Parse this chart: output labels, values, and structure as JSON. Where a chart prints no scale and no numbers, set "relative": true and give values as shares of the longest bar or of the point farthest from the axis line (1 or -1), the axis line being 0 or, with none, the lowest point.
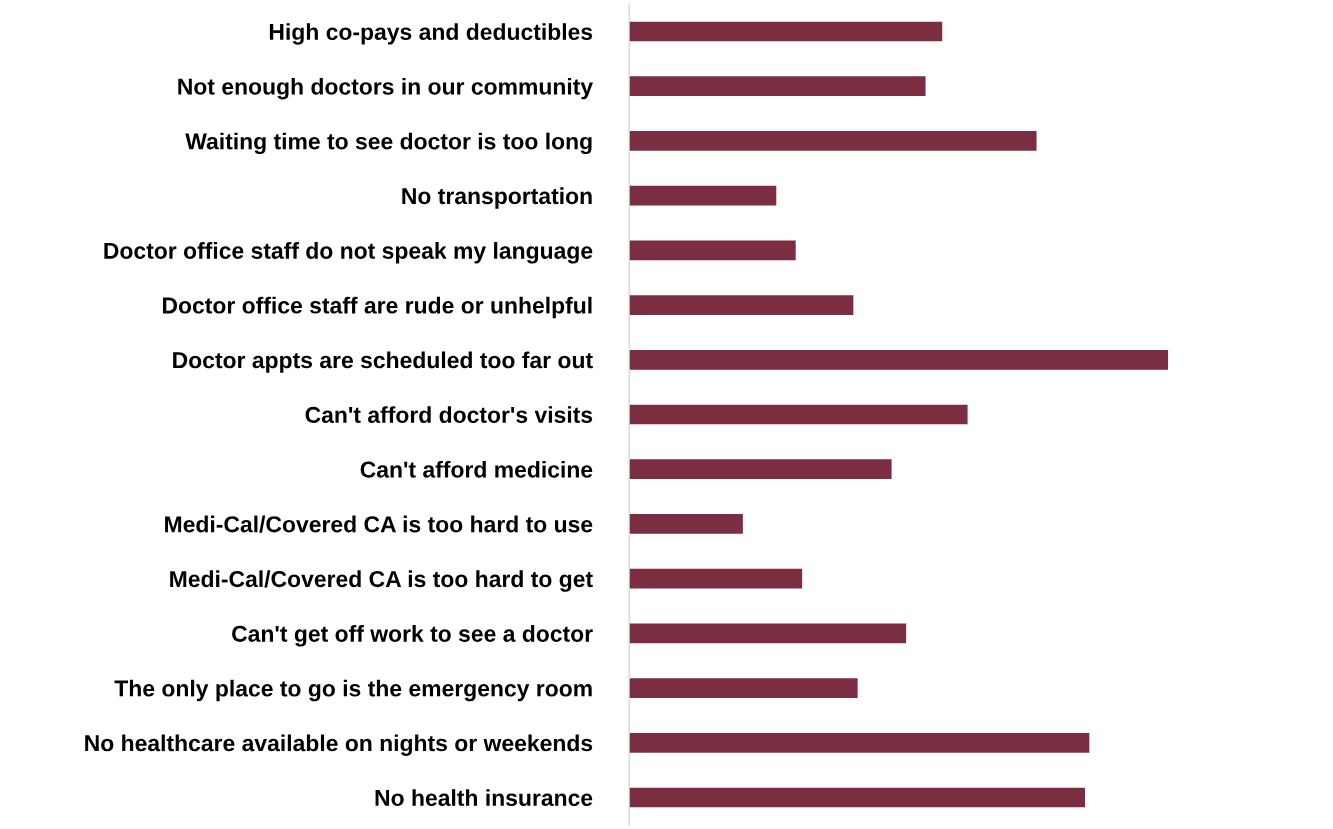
{
  "chart_data": {
    "type": "bar",
    "orientation": "horizontal",
    "relative": true,
    "color": "#7b2d42",
    "categories": [
      "High co-pays and deductibles",
      "Not enough doctors in our community",
      "Waiting time to see doctor is too long",
      "No transportation",
      "Doctor office staff do not speak my language",
      "Doctor office staff are rude or unhelpful",
      "Doctor appts are scheduled too far out",
      "Can't afford doctor's visits",
      "Can't afford medicine",
      "Medi-Cal/Covered CA is too hard to use",
      "Medi-Cal/Covered CA is too hard to get",
      "Can't get off work to see a doctor",
      "The only place to go is the emergency room",
      "No healthcare available on nights or weekends",
      "No health insurance"
    ],
    "values": [
      0.581,
      0.55,
      0.756,
      0.273,
      0.309,
      0.416,
      1.0,
      0.628,
      0.487,
      0.211,
      0.321,
      0.514,
      0.424,
      0.854,
      0.846
    ]
  }
}
